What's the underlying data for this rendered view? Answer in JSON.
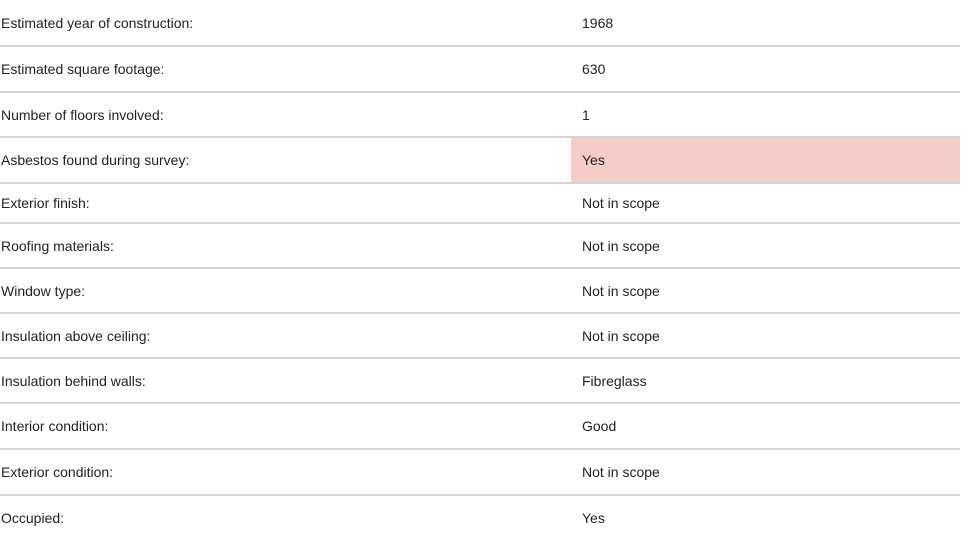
{
  "highlight_color": "#f5ccc6",
  "rows": [
    {
      "label": "Estimated year of construction:",
      "value": "1968",
      "highlight": false
    },
    {
      "label": "Estimated square footage:",
      "value": "630",
      "highlight": false
    },
    {
      "label": "Number of floors involved:",
      "value": "1",
      "highlight": false
    },
    {
      "label": "Asbestos found during survey:",
      "value": "Yes",
      "highlight": true
    },
    {
      "label": "Exterior finish:",
      "value": "Not in scope",
      "highlight": false
    },
    {
      "label": "Roofing materials:",
      "value": "Not in scope",
      "highlight": false
    },
    {
      "label": "Window type:",
      "value": "Not in scope",
      "highlight": false
    },
    {
      "label": "Insulation above ceiling:",
      "value": "Not in scope",
      "highlight": false
    },
    {
      "label": "Insulation behind walls:",
      "value": "Fibreglass",
      "highlight": false
    },
    {
      "label": "Interior condition:",
      "value": "Good",
      "highlight": false
    },
    {
      "label": "Exterior condition:",
      "value": "Not in scope",
      "highlight": false
    },
    {
      "label": "Occupied:",
      "value": "Yes",
      "highlight": false
    }
  ]
}
